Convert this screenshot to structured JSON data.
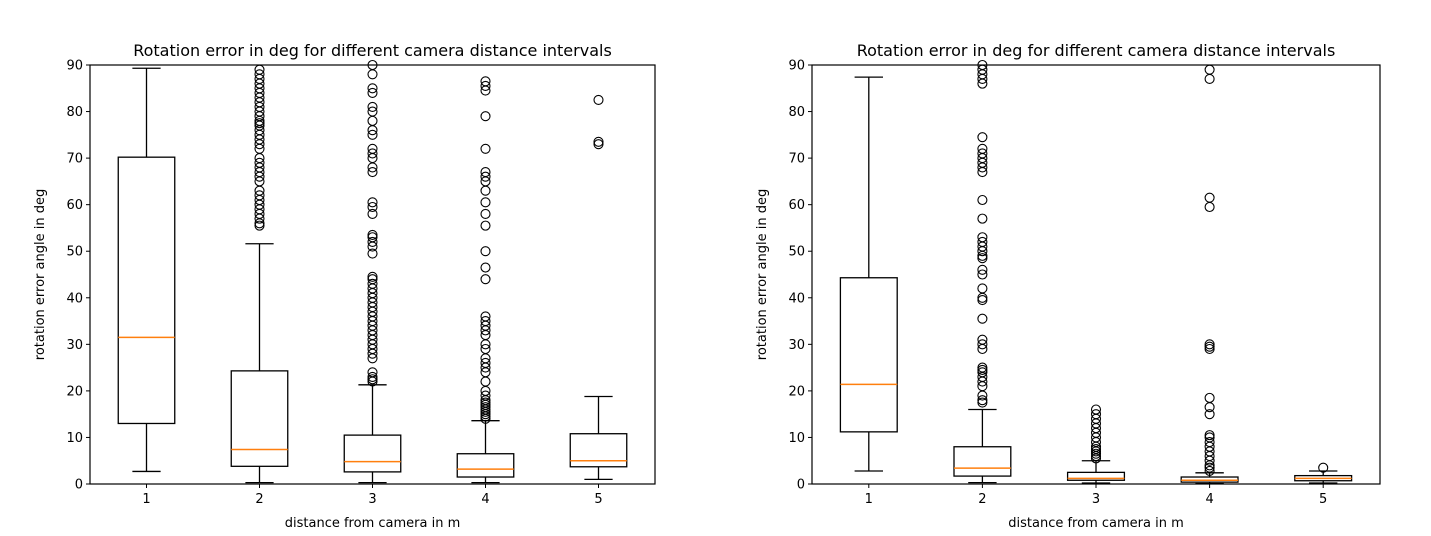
{
  "chart_data": [
    {
      "type": "box",
      "title": "Rotation error in deg for different camera distance intervals",
      "xlabel": "distance from camera in m",
      "ylabel": "rotation error angle in deg",
      "categories": [
        "1",
        "2",
        "3",
        "4",
        "5"
      ],
      "ylim": [
        0,
        90
      ],
      "yticks": [
        "0",
        "10",
        "20",
        "30",
        "40",
        "50",
        "60",
        "70",
        "80",
        "90"
      ],
      "grid": false,
      "colors": {
        "box": "#000000",
        "median": "#ff7f0e"
      },
      "boxes": [
        {
          "whislo": 2.7,
          "q1": 13,
          "med": 31.5,
          "q3": 70.2,
          "whishi": 89.3,
          "fliers": []
        },
        {
          "whislo": 0.3,
          "q1": 3.8,
          "med": 7.4,
          "q3": 24.3,
          "whishi": 51.6,
          "fliers": [
            55.5,
            56,
            57,
            58,
            59,
            60,
            61,
            62,
            63,
            65,
            66,
            67,
            68,
            69,
            70,
            72,
            73,
            74,
            75,
            76,
            77,
            77.5,
            78,
            79,
            80,
            81,
            82,
            83,
            84,
            85,
            86,
            87,
            88,
            89
          ]
        },
        {
          "whislo": 0.3,
          "q1": 2.6,
          "med": 4.8,
          "q3": 10.5,
          "whishi": 21.3,
          "fliers": [
            22,
            22.5,
            23,
            24,
            27,
            28,
            29,
            30,
            31,
            32,
            33,
            34,
            35,
            36,
            37,
            38,
            39,
            40,
            41,
            42,
            43,
            44,
            44.5,
            49.5,
            51,
            52,
            53,
            53.5,
            58,
            59.5,
            60.5,
            67,
            68,
            70,
            71,
            72,
            75,
            76,
            78,
            80,
            81,
            84,
            85,
            88,
            90
          ]
        },
        {
          "whislo": 0.3,
          "q1": 1.5,
          "med": 3.2,
          "q3": 6.5,
          "whishi": 13.6,
          "fliers": [
            14,
            14.5,
            15,
            15.5,
            16,
            16.5,
            17,
            17.5,
            18,
            19,
            20,
            22,
            24,
            25,
            26,
            27,
            29,
            30,
            32,
            33,
            34,
            35,
            36,
            44,
            46.5,
            50,
            55.5,
            58,
            60.5,
            63,
            65,
            66,
            67,
            72,
            79,
            84.5,
            85.5,
            86.5
          ]
        },
        {
          "whislo": 1,
          "q1": 3.7,
          "med": 5,
          "q3": 10.8,
          "whishi": 18.8,
          "fliers": [
            73,
            73.5,
            82.5
          ]
        }
      ]
    },
    {
      "type": "box",
      "title": "Rotation error in deg for different camera distance intervals",
      "xlabel": "distance from camera in m",
      "ylabel": "rotation error angle in deg",
      "categories": [
        "1",
        "2",
        "3",
        "4",
        "5"
      ],
      "ylim": [
        0,
        90
      ],
      "yticks": [
        "0",
        "10",
        "20",
        "30",
        "40",
        "50",
        "60",
        "70",
        "80",
        "90"
      ],
      "grid": false,
      "colors": {
        "box": "#000000",
        "median": "#ff7f0e"
      },
      "boxes": [
        {
          "whislo": 2.8,
          "q1": 11.2,
          "med": 21.4,
          "q3": 44.3,
          "whishi": 87.4,
          "fliers": []
        },
        {
          "whislo": 0.3,
          "q1": 1.7,
          "med": 3.4,
          "q3": 8,
          "whishi": 16,
          "fliers": [
            17.5,
            18,
            19,
            21,
            22,
            23,
            24,
            24.5,
            25,
            29,
            30,
            31,
            35.5,
            39.5,
            40,
            42,
            45,
            46,
            48.5,
            49,
            50,
            51,
            52,
            53,
            57,
            61,
            67,
            68,
            69,
            70,
            71,
            72,
            74.5,
            86,
            87,
            88,
            89,
            90
          ]
        },
        {
          "whislo": 0.2,
          "q1": 0.8,
          "med": 1.2,
          "q3": 2.5,
          "whishi": 5,
          "fliers": [
            5.5,
            6,
            6.5,
            7,
            7.5,
            8,
            9,
            10,
            11,
            12,
            13,
            14,
            15,
            16
          ]
        },
        {
          "whislo": 0.1,
          "q1": 0.4,
          "med": 0.8,
          "q3": 1.5,
          "whishi": 2.4,
          "fliers": [
            2.8,
            3.5,
            4,
            5,
            6,
            7,
            8,
            9,
            10,
            10.5,
            15,
            16.5,
            18.5,
            29,
            29.5,
            30,
            59.5,
            61.5,
            87,
            89
          ]
        },
        {
          "whislo": 0.2,
          "q1": 0.7,
          "med": 1.2,
          "q3": 1.8,
          "whishi": 2.8,
          "fliers": [
            3.5
          ]
        }
      ]
    }
  ]
}
